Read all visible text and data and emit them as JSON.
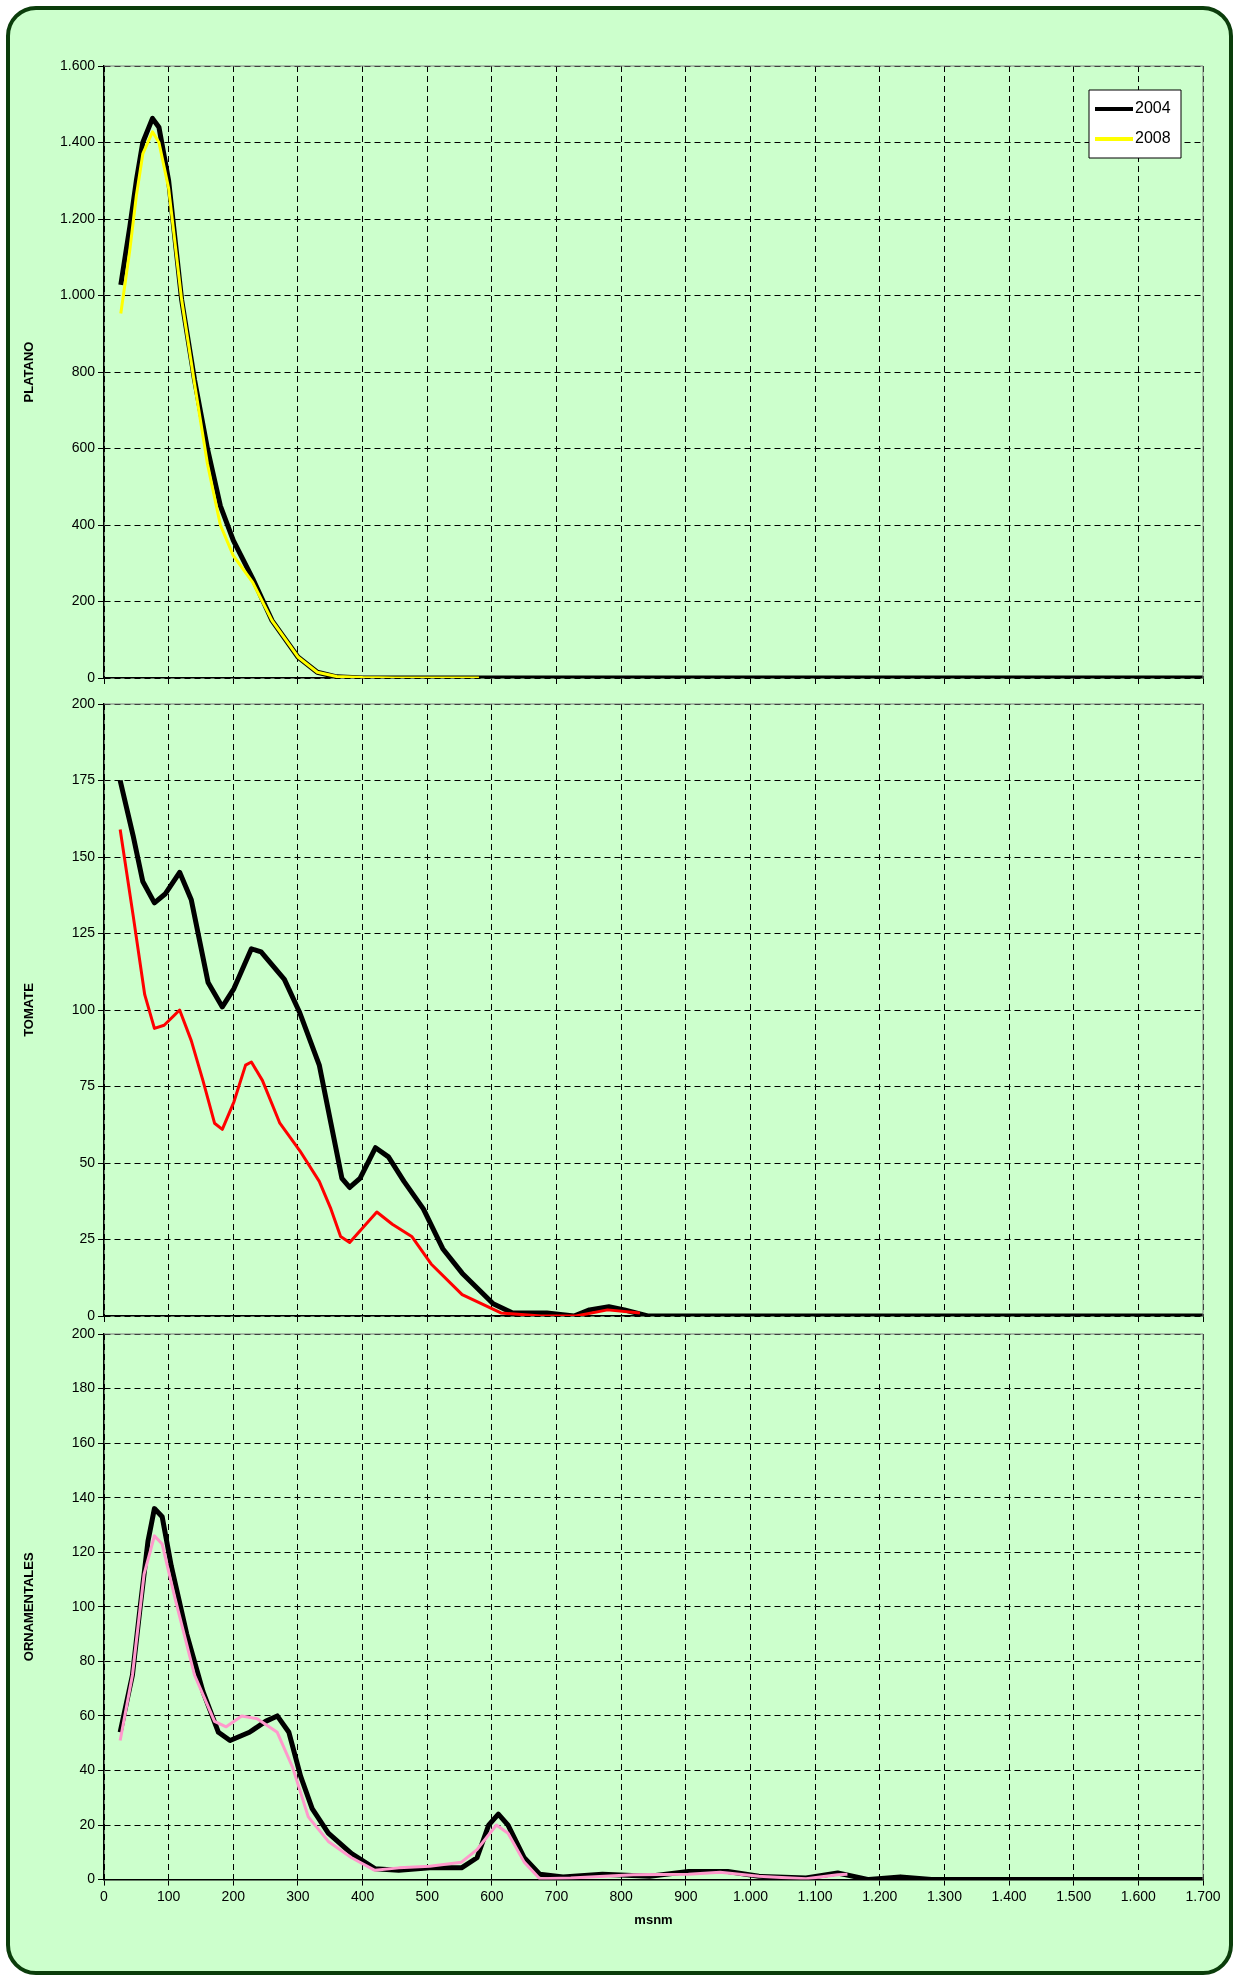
{
  "chart_data": [
    {
      "type": "line",
      "ylabel": "PLATANO",
      "xlim": [
        0,
        1700
      ],
      "xticks": [
        {
          "value": 0,
          "label": null
        },
        {
          "value": 100,
          "label": null
        },
        {
          "value": 200,
          "label": null
        },
        {
          "value": 300,
          "label": null
        },
        {
          "value": 400,
          "label": null
        },
        {
          "value": 500,
          "label": null
        },
        {
          "value": 600,
          "label": null
        },
        {
          "value": 700,
          "label": null
        },
        {
          "value": 800,
          "label": null
        },
        {
          "value": 900,
          "label": null
        },
        {
          "value": 1000,
          "label": null
        },
        {
          "value": 1100,
          "label": null
        },
        {
          "value": 1200,
          "label": null
        },
        {
          "value": 1300,
          "label": null
        },
        {
          "value": 1400,
          "label": null
        },
        {
          "value": 1500,
          "label": null
        },
        {
          "value": 1600,
          "label": null
        },
        {
          "value": 1700,
          "label": null
        }
      ],
      "ylim": [
        0,
        1600
      ],
      "yticks": [
        0,
        200,
        400,
        600,
        800,
        {
          "value": 1000,
          "label": "1.000"
        },
        {
          "value": 1200,
          "label": "1.200"
        },
        {
          "value": 1400,
          "label": "1.400"
        },
        {
          "value": 1600,
          "label": "1.600"
        }
      ],
      "grid": true,
      "tick_labels": "y",
      "legend": "top right",
      "series": [
        {
          "name": "2004",
          "color": "#000000",
          "x": [
            26,
            40,
            50,
            60,
            75,
            85,
            100,
            120,
            140,
            160,
            180,
            200,
            230,
            260,
            300,
            330,
            360,
            400,
            500,
            700,
            1000,
            1300,
            1700
          ],
          "values": [
            1028,
            1180,
            1300,
            1400,
            1463,
            1440,
            1300,
            990,
            780,
            600,
            450,
            360,
            260,
            150,
            55,
            15,
            3,
            0,
            0,
            0,
            0,
            0,
            0
          ]
        },
        {
          "name": "2008",
          "color": "#ffff00",
          "x": [
            26,
            40,
            50,
            60,
            75,
            85,
            100,
            120,
            140,
            160,
            180,
            200,
            230,
            260,
            300,
            330,
            360,
            400,
            450,
            500,
            580
          ],
          "values": [
            953,
            1120,
            1260,
            1370,
            1428,
            1400,
            1280,
            990,
            770,
            560,
            400,
            320,
            250,
            150,
            55,
            15,
            4,
            1,
            0,
            0,
            0
          ]
        }
      ]
    },
    {
      "type": "line",
      "ylabel": "TOMATE",
      "xlim": [
        0,
        1700
      ],
      "xticks": [
        {
          "value": 0,
          "label": null
        },
        {
          "value": 100,
          "label": null
        },
        {
          "value": 200,
          "label": null
        },
        {
          "value": 300,
          "label": null
        },
        {
          "value": 400,
          "label": null
        },
        {
          "value": 500,
          "label": null
        },
        {
          "value": 600,
          "label": null
        },
        {
          "value": 700,
          "label": null
        },
        {
          "value": 800,
          "label": null
        },
        {
          "value": 900,
          "label": null
        },
        {
          "value": 1000,
          "label": null
        },
        {
          "value": 1100,
          "label": null
        },
        {
          "value": 1200,
          "label": null
        },
        {
          "value": 1300,
          "label": null
        },
        {
          "value": 1400,
          "label": null
        },
        {
          "value": 1500,
          "label": null
        },
        {
          "value": 1600,
          "label": null
        },
        {
          "value": 1700,
          "label": null
        }
      ],
      "ylim": [
        0,
        200
      ],
      "yticks": [
        0,
        25,
        50,
        75,
        100,
        125,
        150,
        175,
        200
      ],
      "grid": true,
      "tick_labels": "y",
      "series": [
        {
          "color": "#000000",
          "x": [
            25,
            45,
            60,
            78,
            95,
            117,
            135,
            161,
            183,
            201,
            228,
            243,
            279,
            303,
            333,
            351,
            368,
            380,
            396,
            420,
            440,
            464,
            494,
            524,
            554,
            602,
            632,
            685,
            727,
            751,
            781,
            805,
            841,
            1000,
            1300,
            1700
          ],
          "values": [
            175,
            157,
            142,
            135,
            138,
            145,
            136,
            109,
            101,
            107,
            120,
            119,
            110,
            99,
            82,
            63,
            45,
            42,
            45,
            55,
            52,
            44,
            35,
            22,
            14,
            4,
            1,
            1,
            0,
            2,
            3,
            2,
            0,
            0,
            0,
            0
          ]
        },
        {
          "color": "#ff0000",
          "x": [
            25,
            45,
            63,
            78,
            93,
            117,
            135,
            153,
            171,
            183,
            201,
            219,
            228,
            245,
            272,
            303,
            333,
            351,
            366,
            380,
            401,
            422,
            446,
            476,
            506,
            554,
            614,
            676,
            730,
            779,
            829
          ],
          "values": [
            159,
            131,
            105,
            94,
            95,
            100,
            90,
            77,
            63,
            61,
            70,
            82,
            83,
            77,
            63,
            54,
            44,
            35,
            26,
            24,
            29,
            34,
            30,
            26,
            17,
            7,
            1,
            0,
            0,
            2,
            1
          ]
        }
      ]
    },
    {
      "type": "line",
      "ylabel": "ORNAMENTALES",
      "xlabel": "msnm",
      "xlim": [
        0,
        1700
      ],
      "xticks": [
        0,
        100,
        200,
        300,
        400,
        500,
        600,
        700,
        800,
        900,
        {
          "value": 1000,
          "label": "1.000"
        },
        {
          "value": 1100,
          "label": "1.100"
        },
        {
          "value": 1200,
          "label": "1.200"
        },
        {
          "value": 1300,
          "label": "1.300"
        },
        {
          "value": 1400,
          "label": "1.400"
        },
        {
          "value": 1500,
          "label": "1.500"
        },
        {
          "value": 1600,
          "label": "1.600"
        },
        {
          "value": 1700,
          "label": "1.700"
        }
      ],
      "ylim": [
        0,
        200
      ],
      "yticks": [
        0,
        20,
        40,
        60,
        80,
        100,
        120,
        140,
        160,
        180,
        200
      ],
      "grid": true,
      "series": [
        {
          "color": "#000000",
          "x": [
            25,
            44,
            56,
            68,
            78,
            90,
            104,
            128,
            153,
            177,
            195,
            225,
            250,
            268,
            286,
            304,
            322,
            347,
            383,
            419,
            456,
            504,
            553,
            577,
            595,
            610,
            625,
            650,
            674,
            710,
            771,
            844,
            904,
            965,
            1013,
            1086,
            1135,
            1183,
            1232,
            1280,
            1500,
            1700
          ],
          "values": [
            54,
            75,
            100,
            124,
            136,
            133,
            115,
            90,
            69,
            54,
            51,
            54,
            58,
            60,
            54,
            38,
            26,
            17,
            9.5,
            4,
            3.4,
            4.3,
            4.3,
            8,
            20,
            24,
            20,
            8,
            2,
            1,
            2,
            1.2,
            3,
            3,
            1.2,
            0.6,
            2.4,
            0,
            1,
            0,
            0,
            0
          ]
        },
        {
          "color": "#ff99cc",
          "x": [
            25,
            44,
            62,
            78,
            90,
            110,
            140,
            171,
            189,
            213,
            237,
            268,
            292,
            316,
            347,
            383,
            419,
            456,
            504,
            553,
            577,
            607,
            625,
            650,
            674,
            722,
            819,
            904,
            953,
            1013,
            1086,
            1135,
            1150
          ],
          "values": [
            51,
            75,
            112,
            126,
            123,
            103,
            75,
            58,
            56,
            60,
            59,
            54,
            41,
            23,
            14,
            8,
            3.4,
            4.3,
            4.9,
            6.4,
            11,
            20,
            17,
            6.4,
            0.3,
            0.6,
            1.8,
            2,
            2.7,
            1.2,
            0.3,
            1.8,
            2
          ]
        }
      ]
    }
  ]
}
